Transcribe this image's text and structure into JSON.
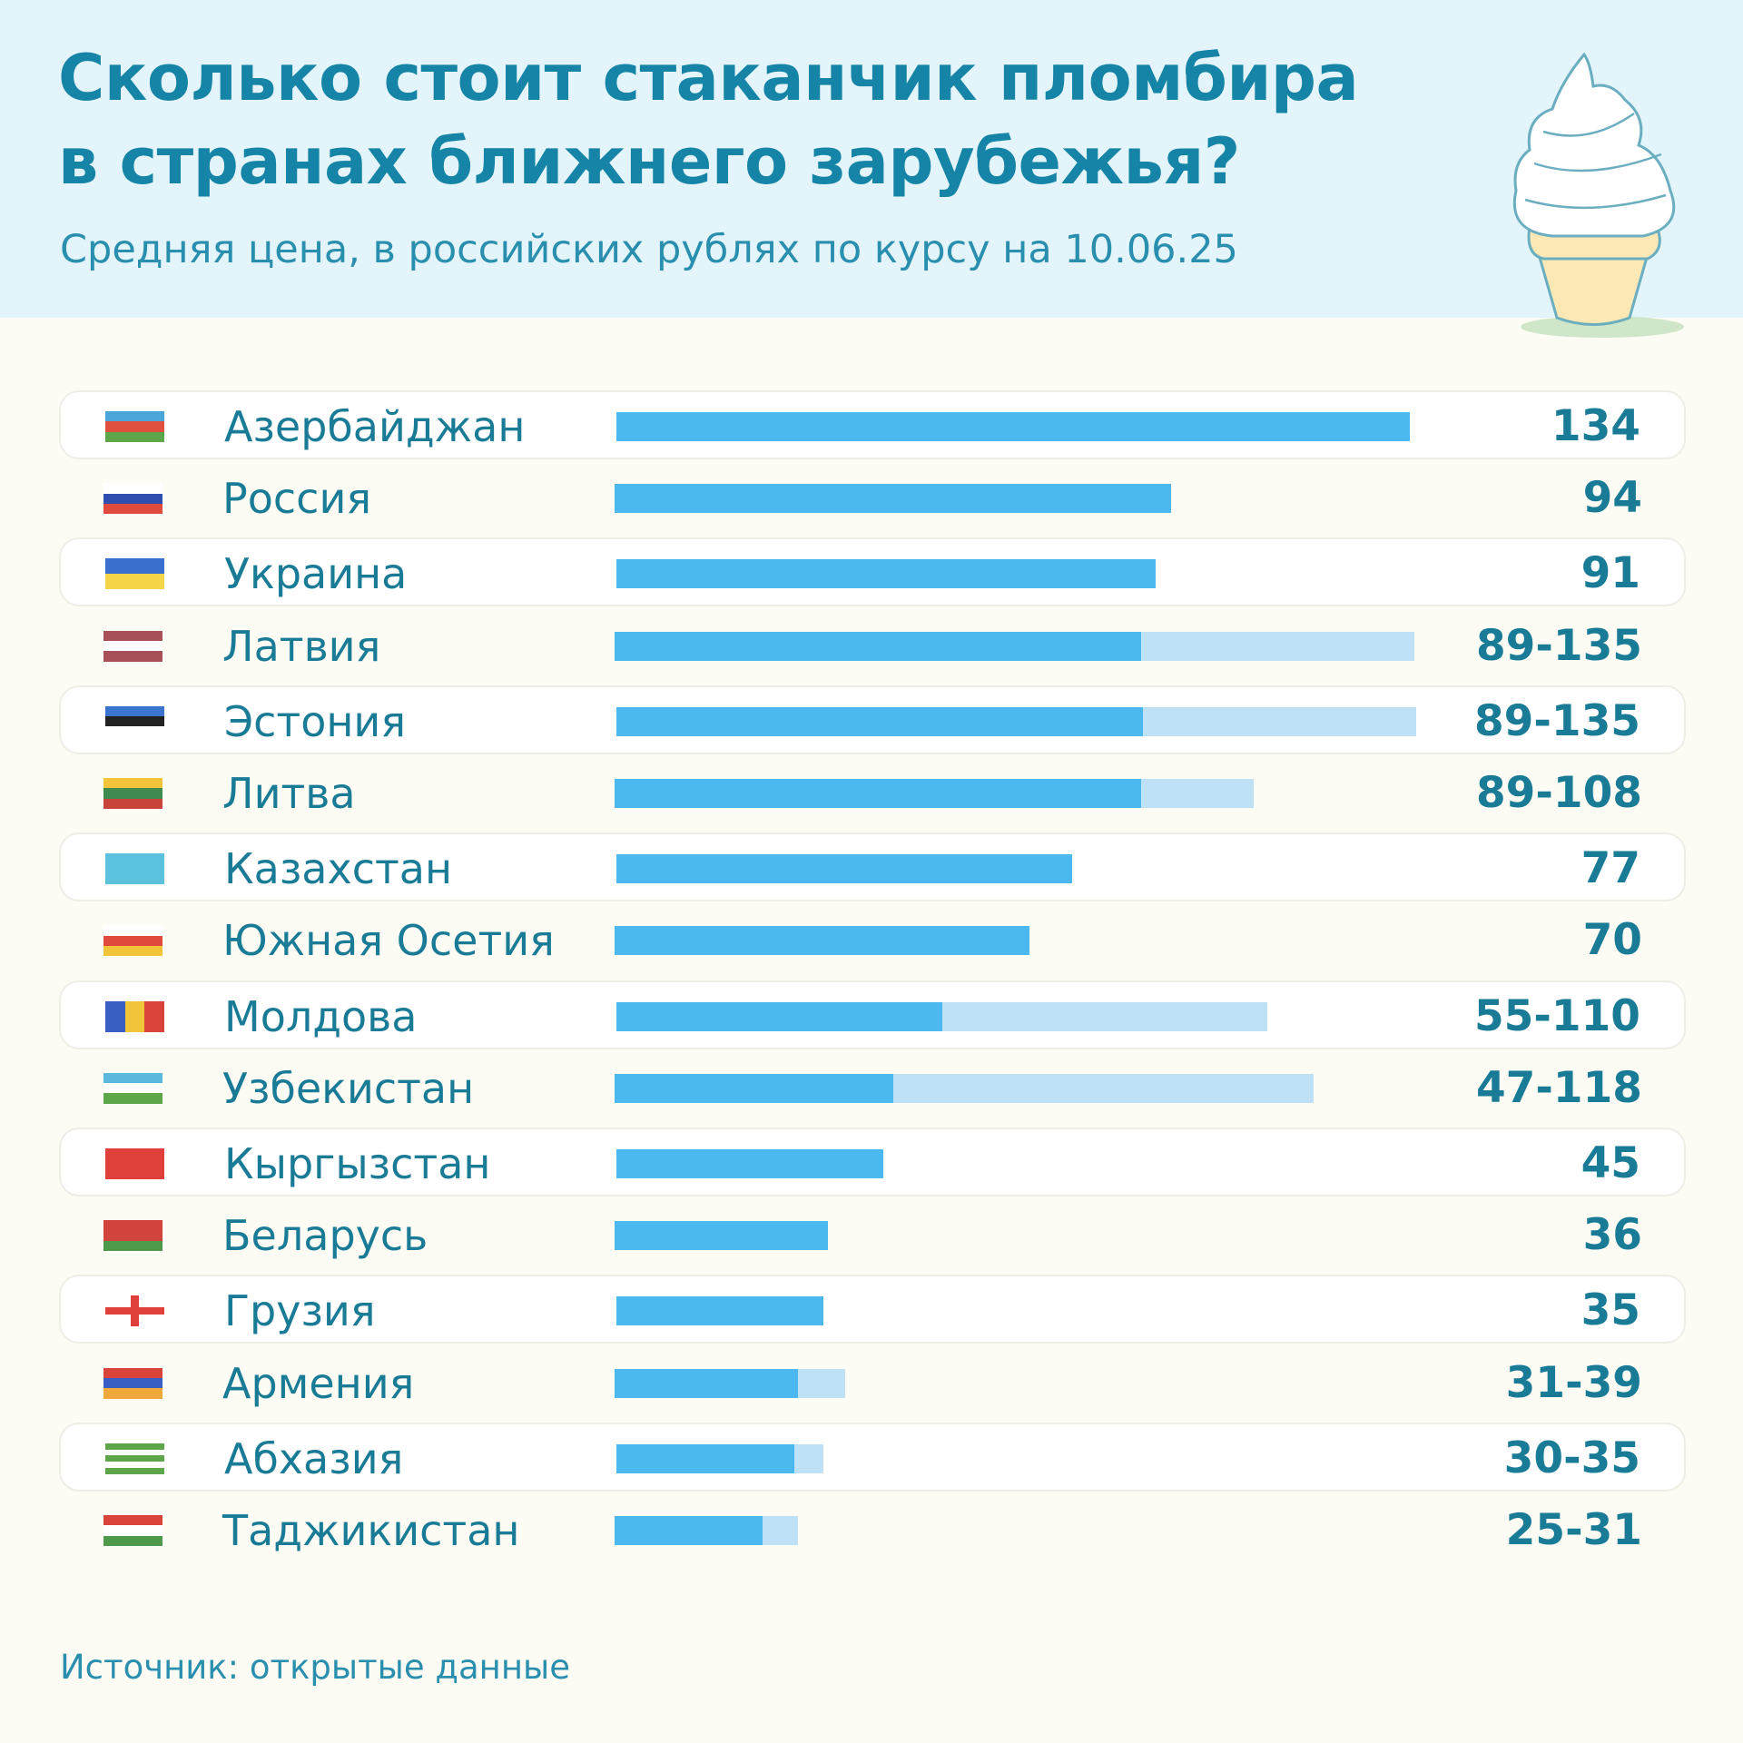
{
  "header": {
    "title_line1": "Сколько стоит стаканчик пломбира",
    "title_line2": "в странах ближнего зарубежья?",
    "subtitle": "Средняя цена, в российских рублях по курсу на 10.06.25"
  },
  "source": "Источник: открытые данные",
  "colors": {
    "bar_min": "#4bb8ef",
    "bar_range": "#bfe1f6",
    "text": "#1a7b96",
    "header_bg": "#e3f5fa"
  },
  "chart_data": {
    "type": "bar",
    "orientation": "horizontal",
    "title": "Сколько стоит стаканчик пломбира в странах ближнего зарубежья?",
    "subtitle": "Средняя цена, в российских рублях по курсу на 10.06.25",
    "xlim": [
      0,
      134
    ],
    "rows": [
      {
        "country": "Азербайджан",
        "min": 134,
        "max": 134,
        "label": "134",
        "flag": [
          "#4aa6d8",
          "#e0503f",
          "#5ea64a"
        ]
      },
      {
        "country": "Россия",
        "min": 94,
        "max": 94,
        "label": "94",
        "flag": [
          "#ffffff",
          "#2f4fb0",
          "#e04a3c"
        ]
      },
      {
        "country": "Украина",
        "min": 91,
        "max": 91,
        "label": "91",
        "flag": [
          "#3a6fd0",
          "#f5d54a"
        ]
      },
      {
        "country": "Латвия",
        "min": 89,
        "max": 135,
        "label": "89-135",
        "flag": [
          "#a85058",
          "#ffffff",
          "#a85058"
        ]
      },
      {
        "country": "Эстония",
        "min": 89,
        "max": 135,
        "label": "89-135",
        "flag": [
          "#3a74cc",
          "#222222",
          "#ffffff"
        ]
      },
      {
        "country": "Литва",
        "min": 89,
        "max": 108,
        "label": "89-108",
        "flag": [
          "#f2c43a",
          "#3f8a4e",
          "#c8433a"
        ]
      },
      {
        "country": "Казахстан",
        "min": 77,
        "max": 77,
        "label": "77",
        "flag": [
          "#5cc1dc"
        ]
      },
      {
        "country": "Южная Осетия",
        "min": 70,
        "max": 70,
        "label": "70",
        "flag": [
          "#ffffff",
          "#e04a3c",
          "#f2c43a"
        ]
      },
      {
        "country": "Молдова",
        "min": 55,
        "max": 110,
        "label": "55-110",
        "flag": [
          "#3a5fc4",
          "#f2c43a",
          "#d8433a"
        ],
        "vertical": true
      },
      {
        "country": "Узбекистан",
        "min": 47,
        "max": 118,
        "label": "47-118",
        "flag": [
          "#5cb8dc",
          "#ffffff",
          "#5ea64a"
        ]
      },
      {
        "country": "Кыргызстан",
        "min": 45,
        "max": 45,
        "label": "45",
        "flag": [
          "#e0403a"
        ]
      },
      {
        "country": "Беларусь",
        "min": 36,
        "max": 36,
        "label": "36",
        "flag": [
          "#d0443c",
          "#d0443c",
          "#4e9a4a"
        ]
      },
      {
        "country": "Грузия",
        "min": 35,
        "max": 35,
        "label": "35",
        "flag": [
          "#ffffff"
        ],
        "cross": "#e0403a"
      },
      {
        "country": "Армения",
        "min": 31,
        "max": 39,
        "label": "31-39",
        "flag": [
          "#d8433a",
          "#3a5fc4",
          "#f0a83a"
        ]
      },
      {
        "country": "Абхазия",
        "min": 30,
        "max": 35,
        "label": "30-35",
        "flag": [
          "#5ea64a",
          "#ffffff",
          "#5ea64a",
          "#ffffff",
          "#5ea64a"
        ]
      },
      {
        "country": "Таджикистан",
        "min": 25,
        "max": 31,
        "label": "25-31",
        "flag": [
          "#d8433a",
          "#ffffff",
          "#4e9a4a"
        ]
      }
    ]
  }
}
